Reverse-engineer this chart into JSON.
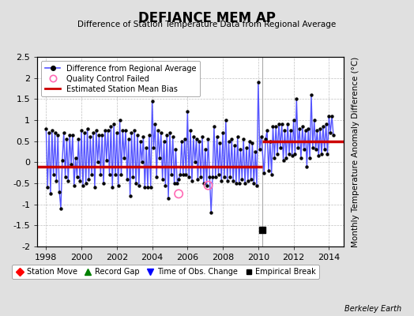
{
  "title": "DEFIANCE MEM AP",
  "subtitle": "Difference of Station Temperature Data from Regional Average",
  "ylabel": "Monthly Temperature Anomaly Difference (°C)",
  "ylim": [
    -2.0,
    2.5
  ],
  "xlim": [
    1997.5,
    2014.83
  ],
  "yticks": [
    -2,
    -1.5,
    -1,
    -0.5,
    0,
    0.5,
    1,
    1.5,
    2,
    2.5
  ],
  "xticks": [
    1998,
    2000,
    2002,
    2004,
    2006,
    2008,
    2010,
    2012,
    2014
  ],
  "bg_color": "#e0e0e0",
  "plot_bg_color": "#ffffff",
  "grid_color": "#c0c0c0",
  "line_color": "#5555ff",
  "line_width": 1.0,
  "dot_color": "#000000",
  "dot_size": 10,
  "bias1_y": -0.1,
  "bias1_xstart": 1997.5,
  "bias1_xend": 2010.25,
  "bias2_y": 0.5,
  "bias2_xstart": 2010.25,
  "bias2_xend": 2014.83,
  "bias_color": "#cc0000",
  "bias_lw": 2.5,
  "vline_x": 2010.25,
  "vline_color": "#aaaaaa",
  "empirical_break_x": 2010.25,
  "empirical_break_y": -1.6,
  "qc_failed_points": [
    [
      2005.5,
      -0.75
    ],
    [
      2007.17,
      -0.55
    ]
  ],
  "legend1_items": [
    "Difference from Regional Average",
    "Quality Control Failed",
    "Estimated Station Mean Bias"
  ],
  "legend2_items": [
    "Station Move",
    "Record Gap",
    "Time of Obs. Change",
    "Empirical Break"
  ],
  "watermark": "Berkeley Earth",
  "data_x": [
    1998.0,
    1998.083,
    1998.167,
    1998.25,
    1998.333,
    1998.417,
    1998.5,
    1998.583,
    1998.667,
    1998.75,
    1998.833,
    1998.917,
    1999.0,
    1999.083,
    1999.167,
    1999.25,
    1999.333,
    1999.417,
    1999.5,
    1999.583,
    1999.667,
    1999.75,
    1999.833,
    1999.917,
    2000.0,
    2000.083,
    2000.167,
    2000.25,
    2000.333,
    2000.417,
    2000.5,
    2000.583,
    2000.667,
    2000.75,
    2000.833,
    2000.917,
    2001.0,
    2001.083,
    2001.167,
    2001.25,
    2001.333,
    2001.417,
    2001.5,
    2001.583,
    2001.667,
    2001.75,
    2001.833,
    2001.917,
    2002.0,
    2002.083,
    2002.167,
    2002.25,
    2002.333,
    2002.417,
    2002.5,
    2002.583,
    2002.667,
    2002.75,
    2002.833,
    2002.917,
    2003.0,
    2003.083,
    2003.167,
    2003.25,
    2003.333,
    2003.417,
    2003.5,
    2003.583,
    2003.667,
    2003.75,
    2003.833,
    2003.917,
    2004.0,
    2004.083,
    2004.167,
    2004.25,
    2004.333,
    2004.417,
    2004.5,
    2004.583,
    2004.667,
    2004.75,
    2004.833,
    2004.917,
    2005.0,
    2005.083,
    2005.167,
    2005.25,
    2005.333,
    2005.417,
    2005.5,
    2005.583,
    2005.667,
    2005.75,
    2005.833,
    2005.917,
    2006.0,
    2006.083,
    2006.167,
    2006.25,
    2006.333,
    2006.417,
    2006.5,
    2006.583,
    2006.667,
    2006.75,
    2006.833,
    2006.917,
    2007.0,
    2007.083,
    2007.167,
    2007.25,
    2007.333,
    2007.417,
    2007.5,
    2007.583,
    2007.667,
    2007.75,
    2007.833,
    2007.917,
    2008.0,
    2008.083,
    2008.167,
    2008.25,
    2008.333,
    2008.417,
    2008.5,
    2008.583,
    2008.667,
    2008.75,
    2008.833,
    2008.917,
    2009.0,
    2009.083,
    2009.167,
    2009.25,
    2009.333,
    2009.417,
    2009.5,
    2009.583,
    2009.667,
    2009.75,
    2009.833,
    2009.917,
    2010.0,
    2010.083,
    2010.167,
    2010.333,
    2010.417,
    2010.5,
    2010.583,
    2010.667,
    2010.75,
    2010.833,
    2010.917,
    2011.0,
    2011.083,
    2011.167,
    2011.25,
    2011.333,
    2011.417,
    2011.5,
    2011.583,
    2011.667,
    2011.75,
    2011.833,
    2011.917,
    2012.0,
    2012.083,
    2012.167,
    2012.25,
    2012.333,
    2012.417,
    2012.5,
    2012.583,
    2012.667,
    2012.75,
    2012.833,
    2012.917,
    2013.0,
    2013.083,
    2013.167,
    2013.25,
    2013.333,
    2013.417,
    2013.5,
    2013.583,
    2013.667,
    2013.75,
    2013.833,
    2013.917,
    2014.0,
    2014.083,
    2014.167,
    2014.25
  ],
  "data_y": [
    0.8,
    -0.6,
    0.7,
    -0.75,
    0.75,
    -0.3,
    0.7,
    -0.45,
    0.65,
    -0.7,
    -1.1,
    0.05,
    0.7,
    -0.35,
    0.55,
    -0.45,
    0.65,
    -0.05,
    0.65,
    -0.55,
    0.1,
    -0.35,
    0.55,
    -0.45,
    0.75,
    -0.55,
    0.7,
    -0.5,
    0.8,
    -0.4,
    0.6,
    -0.3,
    0.7,
    -0.6,
    0.75,
    0.0,
    0.65,
    -0.3,
    0.65,
    -0.5,
    0.75,
    0.05,
    0.75,
    -0.3,
    0.85,
    -0.6,
    0.9,
    -0.3,
    0.7,
    -0.55,
    1.0,
    -0.3,
    0.75,
    0.1,
    0.75,
    -0.4,
    0.55,
    -0.8,
    0.7,
    -0.35,
    0.75,
    -0.5,
    0.65,
    -0.55,
    0.5,
    0.0,
    0.6,
    -0.6,
    0.35,
    -0.6,
    0.65,
    -0.6,
    1.45,
    0.35,
    0.9,
    -0.35,
    0.75,
    0.1,
    0.7,
    -0.4,
    0.5,
    -0.55,
    0.65,
    -0.85,
    0.7,
    -0.3,
    0.6,
    -0.5,
    0.3,
    -0.5,
    -0.4,
    -0.3,
    0.5,
    -0.3,
    0.55,
    -0.3,
    1.2,
    -0.35,
    0.75,
    -0.45,
    0.6,
    0.0,
    0.55,
    -0.4,
    0.5,
    -0.35,
    0.6,
    -0.5,
    0.3,
    -0.55,
    0.55,
    -0.35,
    -1.2,
    -0.35,
    0.85,
    -0.35,
    0.6,
    -0.3,
    0.45,
    -0.45,
    0.7,
    -0.35,
    1.0,
    -0.45,
    0.5,
    -0.35,
    0.55,
    -0.45,
    0.4,
    -0.5,
    0.6,
    -0.5,
    0.3,
    -0.4,
    0.55,
    -0.5,
    0.35,
    -0.45,
    0.5,
    -0.4,
    0.45,
    -0.5,
    0.25,
    -0.55,
    1.9,
    0.3,
    0.6,
    -0.25,
    0.55,
    0.75,
    -0.2,
    0.5,
    -0.3,
    0.85,
    0.1,
    0.85,
    0.2,
    0.9,
    0.35,
    0.9,
    0.05,
    0.75,
    0.1,
    0.9,
    0.2,
    0.75,
    0.15,
    1.0,
    0.2,
    1.5,
    0.35,
    0.8,
    0.1,
    0.85,
    0.3,
    0.75,
    -0.1,
    0.8,
    0.1,
    1.6,
    0.35,
    1.0,
    0.3,
    0.75,
    0.15,
    0.8,
    0.2,
    0.85,
    0.3,
    0.9,
    0.2,
    1.1,
    0.7,
    1.1,
    0.65
  ]
}
